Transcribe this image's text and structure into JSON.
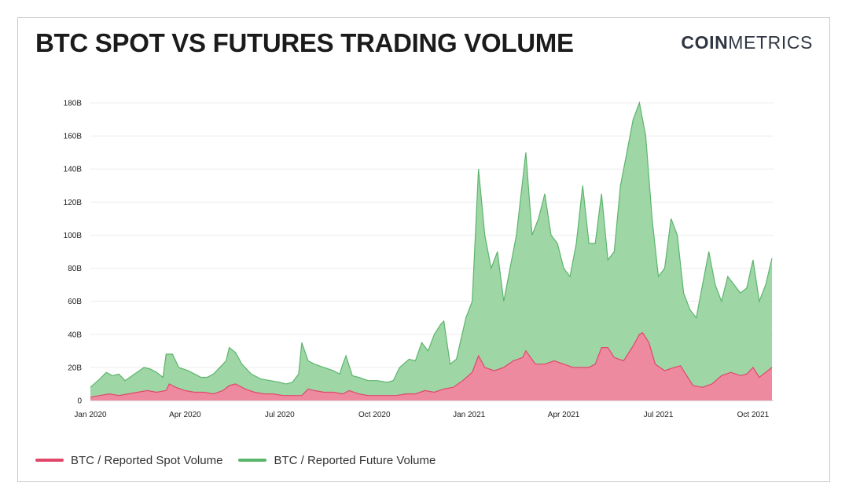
{
  "header": {
    "title": "BTC SPOT VS FUTURES TRADING VOLUME",
    "brand_bold": "COIN",
    "brand_light": "METRICS"
  },
  "legend": {
    "spot_label": "BTC / Reported Spot Volume",
    "future_label": "BTC / Reported Future Volume"
  },
  "colors": {
    "spot": "#e0486a",
    "spot_fill": "#ee8aa0",
    "future": "#5cb56c",
    "future_fill": "#9ed6a6"
  },
  "chart_data": {
    "type": "area",
    "title": "BTC SPOT VS FUTURES TRADING VOLUME",
    "xlabel": "",
    "ylabel": "",
    "ylim": [
      0,
      180
    ],
    "y_unit": "B",
    "y_ticks": [
      "0",
      "20B",
      "40B",
      "60B",
      "80B",
      "100B",
      "120B",
      "140B",
      "160B",
      "180B"
    ],
    "x_ticks": [
      "Jan 2020",
      "Apr 2020",
      "Jul 2020",
      "Oct 2020",
      "Jan 2021",
      "Apr 2021",
      "Jul 2021",
      "Oct 2021"
    ],
    "x_range_months": [
      0,
      21.6
    ],
    "grid": true,
    "stacked": false,
    "series": [
      {
        "name": "BTC / Reported Spot Volume",
        "points": [
          [
            0,
            2
          ],
          [
            0.3,
            3
          ],
          [
            0.6,
            4
          ],
          [
            0.9,
            3
          ],
          [
            1.2,
            4
          ],
          [
            1.5,
            5
          ],
          [
            1.8,
            6
          ],
          [
            2.1,
            5
          ],
          [
            2.4,
            6
          ],
          [
            2.5,
            10
          ],
          [
            2.7,
            8
          ],
          [
            3.0,
            6
          ],
          [
            3.3,
            5
          ],
          [
            3.6,
            5
          ],
          [
            3.9,
            4
          ],
          [
            4.2,
            6
          ],
          [
            4.4,
            9
          ],
          [
            4.6,
            10
          ],
          [
            4.9,
            7
          ],
          [
            5.2,
            5
          ],
          [
            5.5,
            4
          ],
          [
            5.8,
            4
          ],
          [
            6.1,
            3
          ],
          [
            6.4,
            3
          ],
          [
            6.7,
            3
          ],
          [
            6.9,
            7
          ],
          [
            7.1,
            6
          ],
          [
            7.4,
            5
          ],
          [
            7.7,
            5
          ],
          [
            8.0,
            4
          ],
          [
            8.2,
            6
          ],
          [
            8.5,
            4
          ],
          [
            8.8,
            3
          ],
          [
            9.1,
            3
          ],
          [
            9.4,
            3
          ],
          [
            9.7,
            3
          ],
          [
            10.0,
            4
          ],
          [
            10.3,
            4
          ],
          [
            10.6,
            6
          ],
          [
            10.9,
            5
          ],
          [
            11.2,
            7
          ],
          [
            11.5,
            8
          ],
          [
            11.8,
            12
          ],
          [
            12.1,
            17
          ],
          [
            12.3,
            27
          ],
          [
            12.5,
            20
          ],
          [
            12.8,
            18
          ],
          [
            13.1,
            20
          ],
          [
            13.4,
            24
          ],
          [
            13.7,
            26
          ],
          [
            13.8,
            30
          ],
          [
            14.1,
            22
          ],
          [
            14.4,
            22
          ],
          [
            14.7,
            24
          ],
          [
            15.0,
            22
          ],
          [
            15.3,
            20
          ],
          [
            15.6,
            20
          ],
          [
            15.8,
            20
          ],
          [
            16.0,
            22
          ],
          [
            16.2,
            32
          ],
          [
            16.4,
            32
          ],
          [
            16.6,
            26
          ],
          [
            16.9,
            24
          ],
          [
            17.2,
            33
          ],
          [
            17.4,
            40
          ],
          [
            17.5,
            41
          ],
          [
            17.7,
            35
          ],
          [
            17.9,
            22
          ],
          [
            18.2,
            18
          ],
          [
            18.5,
            20
          ],
          [
            18.7,
            21
          ],
          [
            18.9,
            15
          ],
          [
            19.1,
            9
          ],
          [
            19.4,
            8
          ],
          [
            19.7,
            10
          ],
          [
            20.0,
            15
          ],
          [
            20.3,
            17
          ],
          [
            20.6,
            15
          ],
          [
            20.8,
            16
          ],
          [
            21.0,
            20
          ],
          [
            21.2,
            14
          ],
          [
            21.4,
            17
          ],
          [
            21.6,
            20
          ]
        ]
      },
      {
        "name": "BTC / Reported Future Volume",
        "points": [
          [
            0,
            8
          ],
          [
            0.3,
            13
          ],
          [
            0.5,
            17
          ],
          [
            0.7,
            15
          ],
          [
            0.9,
            16
          ],
          [
            1.1,
            12
          ],
          [
            1.4,
            16
          ],
          [
            1.7,
            20
          ],
          [
            1.9,
            19
          ],
          [
            2.1,
            17
          ],
          [
            2.3,
            14
          ],
          [
            2.4,
            28
          ],
          [
            2.6,
            28
          ],
          [
            2.8,
            20
          ],
          [
            3.1,
            18
          ],
          [
            3.3,
            16
          ],
          [
            3.5,
            14
          ],
          [
            3.7,
            14
          ],
          [
            3.9,
            16
          ],
          [
            4.1,
            20
          ],
          [
            4.3,
            24
          ],
          [
            4.4,
            32
          ],
          [
            4.6,
            29
          ],
          [
            4.8,
            22
          ],
          [
            5.1,
            16
          ],
          [
            5.4,
            13
          ],
          [
            5.7,
            12
          ],
          [
            6.0,
            11
          ],
          [
            6.2,
            10
          ],
          [
            6.4,
            11
          ],
          [
            6.6,
            16
          ],
          [
            6.7,
            35
          ],
          [
            6.9,
            24
          ],
          [
            7.1,
            22
          ],
          [
            7.4,
            20
          ],
          [
            7.7,
            18
          ],
          [
            7.9,
            16
          ],
          [
            8.0,
            22
          ],
          [
            8.1,
            27
          ],
          [
            8.3,
            15
          ],
          [
            8.5,
            14
          ],
          [
            8.8,
            12
          ],
          [
            9.1,
            12
          ],
          [
            9.4,
            11
          ],
          [
            9.6,
            12
          ],
          [
            9.8,
            20
          ],
          [
            10.1,
            25
          ],
          [
            10.3,
            24
          ],
          [
            10.5,
            35
          ],
          [
            10.7,
            30
          ],
          [
            10.9,
            40
          ],
          [
            11.1,
            46
          ],
          [
            11.2,
            48
          ],
          [
            11.4,
            22
          ],
          [
            11.6,
            25
          ],
          [
            11.9,
            50
          ],
          [
            12.1,
            60
          ],
          [
            12.3,
            140
          ],
          [
            12.5,
            100
          ],
          [
            12.7,
            80
          ],
          [
            12.9,
            90
          ],
          [
            13.1,
            60
          ],
          [
            13.3,
            80
          ],
          [
            13.5,
            100
          ],
          [
            13.8,
            150
          ],
          [
            14.0,
            100
          ],
          [
            14.2,
            110
          ],
          [
            14.4,
            125
          ],
          [
            14.6,
            100
          ],
          [
            14.8,
            95
          ],
          [
            15.0,
            80
          ],
          [
            15.2,
            75
          ],
          [
            15.4,
            95
          ],
          [
            15.6,
            130
          ],
          [
            15.8,
            95
          ],
          [
            16.0,
            95
          ],
          [
            16.2,
            125
          ],
          [
            16.4,
            85
          ],
          [
            16.6,
            90
          ],
          [
            16.8,
            130
          ],
          [
            17.0,
            150
          ],
          [
            17.2,
            170
          ],
          [
            17.4,
            180
          ],
          [
            17.6,
            160
          ],
          [
            17.8,
            110
          ],
          [
            18.0,
            75
          ],
          [
            18.2,
            80
          ],
          [
            18.4,
            110
          ],
          [
            18.6,
            100
          ],
          [
            18.8,
            65
          ],
          [
            19.0,
            55
          ],
          [
            19.2,
            50
          ],
          [
            19.4,
            70
          ],
          [
            19.6,
            90
          ],
          [
            19.8,
            70
          ],
          [
            20.0,
            60
          ],
          [
            20.2,
            75
          ],
          [
            20.4,
            70
          ],
          [
            20.6,
            65
          ],
          [
            20.8,
            68
          ],
          [
            21.0,
            85
          ],
          [
            21.2,
            60
          ],
          [
            21.4,
            70
          ],
          [
            21.6,
            86
          ]
        ]
      }
    ]
  }
}
